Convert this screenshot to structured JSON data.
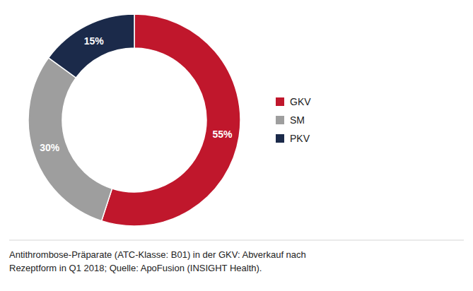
{
  "chart_data": {
    "type": "donut",
    "categories": [
      "GKV",
      "SM",
      "PKV"
    ],
    "values": [
      55,
      30,
      15
    ],
    "value_labels": [
      "55%",
      "30%",
      "15%"
    ],
    "colors": [
      "#C0172C",
      "#9E9E9E",
      "#1B2A4A"
    ],
    "data_labels": true,
    "legend": "right",
    "annotations": [
      "Antithrombose-Präparate (ATC-Klasse: B01) in der GKV: Abverkauf nach",
      "Rezeptform in Q1 2018;  Quelle: ApoFusion (INSIGHT Health)."
    ]
  }
}
